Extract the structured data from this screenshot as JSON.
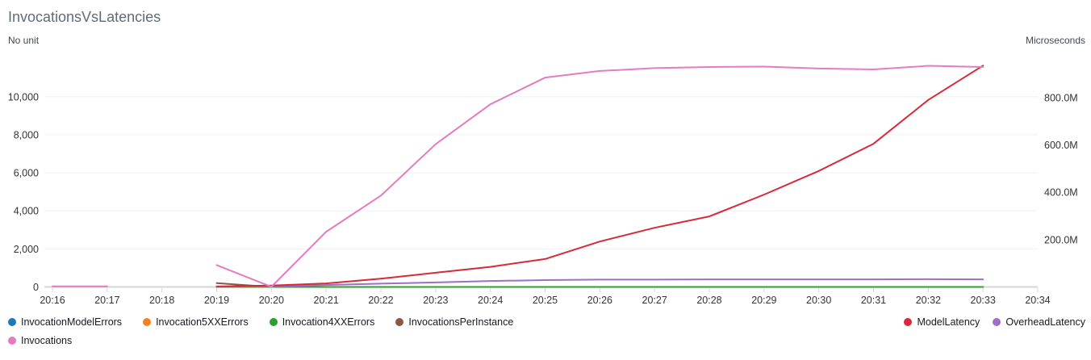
{
  "header": {
    "title": "InvocationsVsLatencies"
  },
  "axes": {
    "left_unit": "No unit",
    "right_unit": "Microseconds",
    "left_ticks": [
      {
        "label": "0",
        "value": 0
      },
      {
        "label": "2,000",
        "value": 2000
      },
      {
        "label": "4,000",
        "value": 4000
      },
      {
        "label": "6,000",
        "value": 6000
      },
      {
        "label": "8,000",
        "value": 8000
      },
      {
        "label": "10,000",
        "value": 10000
      }
    ],
    "right_ticks": [
      {
        "label": "200.0M",
        "value_millions": 200
      },
      {
        "label": "400.0M",
        "value_millions": 400
      },
      {
        "label": "600.0M",
        "value_millions": 600
      },
      {
        "label": "800.0M",
        "value_millions": 800
      }
    ],
    "x_ticks": [
      "20:16",
      "20:17",
      "20:18",
      "20:19",
      "20:20",
      "20:21",
      "20:22",
      "20:23",
      "20:24",
      "20:25",
      "20:26",
      "20:27",
      "20:28",
      "20:29",
      "20:30",
      "20:31",
      "20:32",
      "20:33",
      "20:34"
    ]
  },
  "colors": {
    "grid": "#f0f0f2",
    "axis_line": "#d5d5d5",
    "tick_text": "#333333",
    "blue": "#1f77b4",
    "orange": "#f5821f",
    "green": "#2ca02c",
    "brown": "#8c564b",
    "pink": "#e37cc3",
    "red": "#d62a39",
    "purple": "#9e6ec9"
  },
  "chart_data": {
    "type": "line",
    "title": "InvocationsVsLatencies",
    "left_axis_label": "No unit",
    "right_axis_label": "Microseconds",
    "x": [
      "20:16",
      "20:17",
      "20:18",
      "20:19",
      "20:20",
      "20:21",
      "20:22",
      "20:23",
      "20:24",
      "20:25",
      "20:26",
      "20:27",
      "20:28",
      "20:29",
      "20:30",
      "20:31",
      "20:32",
      "20:33",
      "20:34"
    ],
    "y_left_range": [
      0,
      12000
    ],
    "y_right_range_millions": [
      0,
      1000
    ],
    "grid": "horizontal-only",
    "note": "right-axis series values are in millions of microseconds; null = no data point",
    "series": [
      {
        "name": "InvocationModelErrors",
        "axis": "left",
        "color": "#1f77b4",
        "values": [
          null,
          null,
          null,
          0,
          0,
          0,
          0,
          0,
          0,
          0,
          0,
          0,
          0,
          0,
          0,
          0,
          0,
          0,
          null
        ]
      },
      {
        "name": "Invocation5XXErrors",
        "axis": "left",
        "color": "#f5821f",
        "values": [
          null,
          null,
          null,
          0,
          0,
          0,
          0,
          0,
          0,
          0,
          0,
          0,
          0,
          0,
          0,
          0,
          0,
          0,
          null
        ]
      },
      {
        "name": "InvocationsPerInstance",
        "axis": "left",
        "color": "#8c564b",
        "values": [
          null,
          null,
          null,
          200,
          0,
          0,
          0,
          0,
          0,
          0,
          0,
          0,
          0,
          0,
          0,
          0,
          0,
          0,
          null
        ]
      },
      {
        "name": "Invocation4XXErrors",
        "axis": "left",
        "color": "#2ca02c",
        "values": [
          null,
          null,
          null,
          0,
          0,
          0,
          0,
          0,
          0,
          0,
          0,
          0,
          0,
          0,
          0,
          0,
          0,
          0,
          null
        ]
      },
      {
        "name": "OverheadLatency",
        "axis": "right",
        "color": "#9e6ec9",
        "values": [
          null,
          null,
          null,
          1,
          2,
          8,
          14,
          19,
          25,
          29,
          31,
          31,
          32,
          32,
          32,
          32,
          33,
          32,
          null
        ]
      },
      {
        "name": "ModelLatency",
        "axis": "right",
        "color": "#d62a39",
        "values": [
          null,
          null,
          null,
          2,
          6,
          15,
          35,
          60,
          85,
          118,
          192,
          250,
          298,
          390,
          490,
          605,
          790,
          935,
          null
        ]
      },
      {
        "name": "Invocations",
        "axis": "left",
        "color": "#e37cc3",
        "values": [
          30,
          30,
          null,
          1150,
          10,
          2900,
          4800,
          7500,
          9600,
          11000,
          11350,
          11500,
          11560,
          11580,
          11480,
          11430,
          11620,
          11560,
          null
        ]
      }
    ]
  },
  "legend": {
    "row1_left": [
      {
        "label": "InvocationModelErrors",
        "color": "#1f77b4"
      },
      {
        "label": "Invocation5XXErrors",
        "color": "#f5821f"
      },
      {
        "label": "Invocation4XXErrors",
        "color": "#2ca02c"
      },
      {
        "label": "InvocationsPerInstance",
        "color": "#8c564b"
      }
    ],
    "row1_right": [
      {
        "label": "ModelLatency",
        "color": "#d62a39"
      },
      {
        "label": "OverheadLatency",
        "color": "#9e6ec9"
      }
    ],
    "row2_left": [
      {
        "label": "Invocations",
        "color": "#e37cc3"
      }
    ]
  }
}
